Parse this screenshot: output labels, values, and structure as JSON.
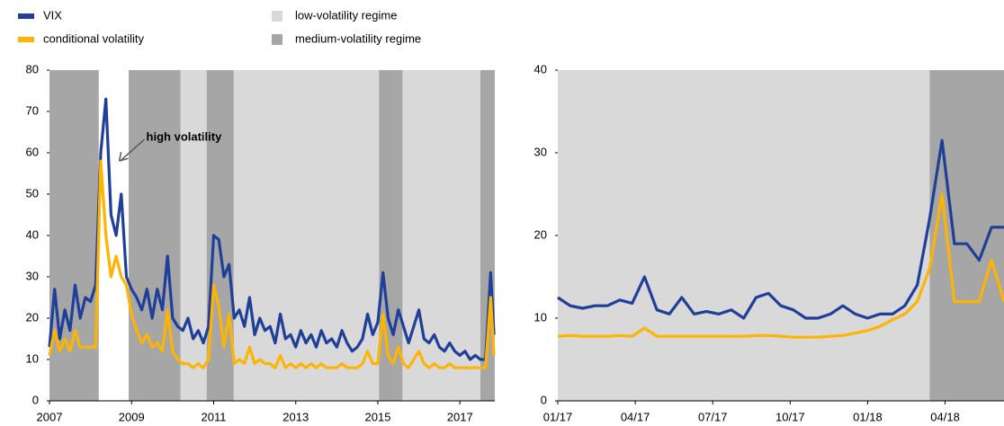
{
  "chart_data": [
    {
      "type": "line",
      "x": [
        2007,
        2007.125,
        2007.25,
        2007.375,
        2007.5,
        2007.625,
        2007.75,
        2007.875,
        2008,
        2008.125,
        2008.25,
        2008.375,
        2008.5,
        2008.625,
        2008.75,
        2008.875,
        2009,
        2009.125,
        2009.25,
        2009.375,
        2009.5,
        2009.625,
        2009.75,
        2009.875,
        2010,
        2010.125,
        2010.25,
        2010.375,
        2010.5,
        2010.625,
        2010.75,
        2010.875,
        2011,
        2011.125,
        2011.25,
        2011.375,
        2011.5,
        2011.625,
        2011.75,
        2011.875,
        2012,
        2012.125,
        2012.25,
        2012.375,
        2012.5,
        2012.625,
        2012.75,
        2012.875,
        2013,
        2013.125,
        2013.25,
        2013.375,
        2013.5,
        2013.625,
        2013.75,
        2013.875,
        2014,
        2014.125,
        2014.25,
        2014.375,
        2014.5,
        2014.625,
        2014.75,
        2014.875,
        2015,
        2015.125,
        2015.25,
        2015.375,
        2015.5,
        2015.625,
        2015.75,
        2015.875,
        2016,
        2016.125,
        2016.25,
        2016.375,
        2016.5,
        2016.625,
        2016.75,
        2016.875,
        2017,
        2017.125,
        2017.25,
        2017.375,
        2017.5,
        2017.625,
        2017.75,
        2017.83
      ],
      "series": [
        {
          "name": "VIX",
          "color": "#1f3f99",
          "values": [
            13,
            27,
            15,
            22,
            17,
            28,
            20,
            25,
            24,
            28,
            60,
            73,
            45,
            40,
            50,
            30,
            27,
            25,
            22,
            27,
            20,
            27,
            22,
            35,
            20,
            18,
            17,
            20,
            15,
            17,
            14,
            18,
            40,
            39,
            30,
            33,
            20,
            22,
            18,
            25,
            16,
            20,
            17,
            18,
            14,
            21,
            15,
            16,
            13,
            17,
            14,
            16,
            13,
            17,
            14,
            15,
            13,
            17,
            14,
            12,
            13,
            15,
            21,
            16,
            19,
            31,
            20,
            16,
            22,
            18,
            14,
            18,
            22,
            15,
            14,
            16,
            13,
            12,
            14,
            12,
            11,
            12,
            10,
            11,
            10,
            10,
            31,
            16
          ]
        },
        {
          "name": "conditional volatility",
          "color": "#ffb400",
          "values": [
            11,
            17,
            12,
            15,
            12,
            17,
            13,
            13,
            13,
            13,
            58,
            40,
            30,
            35,
            30,
            28,
            21,
            17,
            14,
            16,
            13,
            14,
            12,
            22,
            12,
            10,
            9,
            9,
            8,
            9,
            8,
            10,
            28,
            23,
            13,
            21,
            9,
            10,
            9,
            13,
            9,
            10,
            9,
            9,
            8,
            11,
            8,
            9,
            8,
            9,
            8,
            9,
            8,
            9,
            8,
            8,
            8,
            9,
            8,
            8,
            8,
            9,
            12,
            9,
            9,
            21,
            11,
            9,
            13,
            9,
            8,
            10,
            12,
            9,
            8,
            9,
            8,
            8,
            9,
            8,
            8,
            8,
            8,
            8,
            8,
            8,
            25,
            11
          ]
        }
      ],
      "bands": [
        {
          "name": "low-volatility regime",
          "color": "#d9d9d9",
          "spans": [
            [
              2010.19,
              2010.83
            ],
            [
              2011.49,
              2015.03
            ],
            [
              2015.6,
              2017.5
            ]
          ]
        },
        {
          "name": "medium-volatility regime",
          "color": "#a6a6a6",
          "spans": [
            [
              2007,
              2008.2
            ],
            [
              2008.93,
              2010.19
            ],
            [
              2010.83,
              2011.49
            ],
            [
              2015.03,
              2015.6
            ],
            [
              2017.5,
              2017.85
            ]
          ]
        }
      ],
      "annotation": {
        "text": "high volatility",
        "x": 2008.7,
        "y": 58
      },
      "xlim": [
        2007,
        2017.85
      ],
      "xticks": [
        2007,
        2009,
        2011,
        2013,
        2015,
        2017
      ],
      "ylim": [
        0,
        80
      ],
      "yticks": [
        0,
        10,
        20,
        30,
        40,
        50,
        60,
        70,
        80
      ]
    },
    {
      "type": "line",
      "x": [
        2017,
        2017.04,
        2017.08,
        2017.12,
        2017.16,
        2017.2,
        2017.24,
        2017.28,
        2017.32,
        2017.36,
        2017.4,
        2017.44,
        2017.48,
        2017.52,
        2017.56,
        2017.6,
        2017.64,
        2017.68,
        2017.72,
        2017.76,
        2017.8,
        2017.84,
        2017.88,
        2017.92,
        2017.96,
        2018,
        2018.04,
        2018.08,
        2018.12,
        2018.16,
        2018.2,
        2018.24,
        2018.28,
        2018.32,
        2018.36,
        2018.4,
        2018.44
      ],
      "series": [
        {
          "color": "#1f3f99",
          "values": [
            12.5,
            11.5,
            11.2,
            11.5,
            11.5,
            12.2,
            11.8,
            15,
            11,
            10.5,
            12.5,
            10.5,
            10.8,
            10.5,
            11,
            10,
            12.5,
            13,
            11.5,
            11,
            10,
            10,
            10.5,
            11.5,
            10.5,
            10,
            10.5,
            10.5,
            11.5,
            14,
            22,
            31.5,
            19,
            19,
            17,
            21,
            21
          ]
        },
        {
          "color": "#ffb400",
          "values": [
            7.8,
            7.9,
            7.8,
            7.8,
            7.8,
            7.9,
            7.8,
            8.8,
            7.8,
            7.8,
            7.8,
            7.8,
            7.8,
            7.8,
            7.8,
            7.8,
            7.9,
            7.9,
            7.8,
            7.7,
            7.7,
            7.7,
            7.8,
            7.9,
            8.2,
            8.5,
            9,
            9.8,
            10.5,
            12,
            16,
            25,
            12,
            12,
            12,
            17,
            12
          ]
        }
      ],
      "bands": [
        {
          "color": "#d9d9d9",
          "spans": [
            [
              2017,
              2018.2
            ]
          ]
        },
        {
          "color": "#a6a6a6",
          "spans": [
            [
              2018.2,
              2018.44
            ]
          ]
        }
      ],
      "xlim": [
        2017,
        2018.44
      ],
      "xticks": [
        {
          "value": 2017,
          "label": "01/17"
        },
        {
          "value": 2017.25,
          "label": "04/17"
        },
        {
          "value": 2017.5,
          "label": "07/17"
        },
        {
          "value": 2017.75,
          "label": "10/17"
        },
        {
          "value": 2018,
          "label": "01/18"
        },
        {
          "value": 2018.25,
          "label": "04/18"
        }
      ],
      "ylim": [
        0,
        40
      ],
      "yticks": [
        0,
        10,
        20,
        30,
        40
      ]
    }
  ]
}
